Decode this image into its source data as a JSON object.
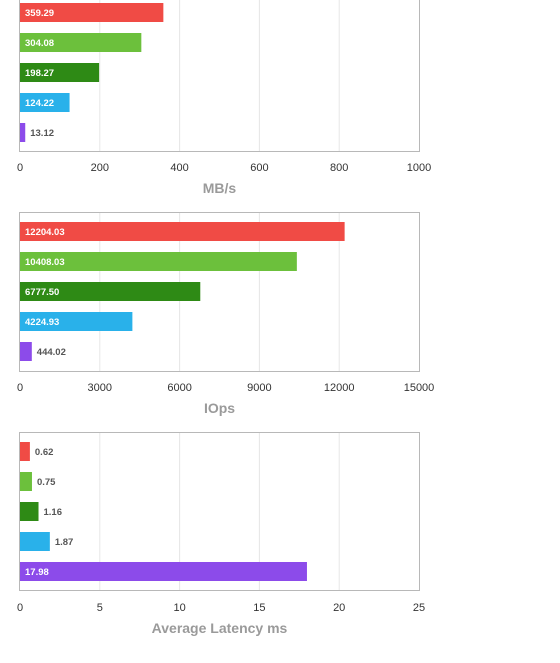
{
  "chart_data": [
    {
      "type": "bar",
      "orientation": "horizontal",
      "xlabel": "MB/s",
      "xlim": [
        0,
        1000
      ],
      "xticks": [
        0,
        200,
        400,
        600,
        800,
        1000
      ],
      "grid": true,
      "values": [
        359.29,
        304.08,
        198.27,
        124.22,
        13.12
      ],
      "value_labels": [
        "359.29",
        "304.08",
        "198.27",
        "124.22",
        "13.12"
      ],
      "colors": [
        "#f04b45",
        "#6cc03c",
        "#2e8a15",
        "#29b1ea",
        "#8c4bea"
      ]
    },
    {
      "type": "bar",
      "orientation": "horizontal",
      "xlabel": "IOps",
      "xlim": [
        0,
        15000
      ],
      "xticks": [
        0,
        3000,
        6000,
        9000,
        12000,
        15000
      ],
      "grid": true,
      "values": [
        12204.03,
        10408.03,
        6777.5,
        4224.93,
        444.02
      ],
      "value_labels": [
        "12204.03",
        "10408.03",
        "6777.50",
        "4224.93",
        "444.02"
      ],
      "colors": [
        "#f04b45",
        "#6cc03c",
        "#2e8a15",
        "#29b1ea",
        "#8c4bea"
      ]
    },
    {
      "type": "bar",
      "orientation": "horizontal",
      "xlabel": "Average Latency ms",
      "xlim": [
        0,
        25
      ],
      "xticks": [
        0,
        5,
        10,
        15,
        20,
        25
      ],
      "grid": true,
      "values": [
        0.62,
        0.75,
        1.16,
        1.87,
        17.98
      ],
      "value_labels": [
        "0.62",
        "0.75",
        "1.16",
        "1.87",
        "17.98"
      ],
      "colors": [
        "#f04b45",
        "#6cc03c",
        "#2e8a15",
        "#29b1ea",
        "#8c4bea"
      ]
    }
  ]
}
